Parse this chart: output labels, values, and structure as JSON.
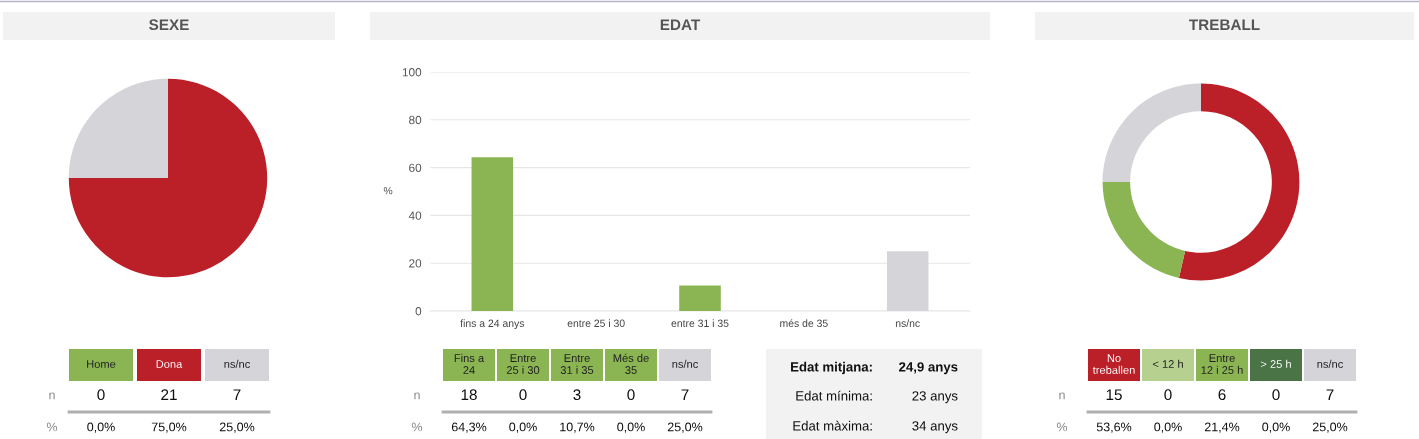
{
  "chart_data": [
    {
      "type": "pie",
      "title": "SEXE",
      "categories": [
        null,
        null,
        null
      ],
      "values": [
        0,
        75,
        25
      ],
      "colors": [
        "#8ab552",
        "#bb1f28",
        "#d4d4d9"
      ]
    },
    {
      "type": "other",
      "categories": [
        "Home",
        "Dona",
        "ns/nc"
      ],
      "colors": [
        "#8ab552",
        "#bb1f28",
        "#d4d4d9"
      ],
      "annotations": [
        "n",
        "0",
        "21",
        "7",
        "%",
        "0,0%",
        "75,0%",
        "25,0%"
      ]
    },
    {
      "type": "bar",
      "title": "EDAT",
      "ylabel": "%",
      "categories": [
        "fins a 24 anys",
        "entre 25 i 30",
        "entre 31 i 35",
        "més de 35",
        "ns/nc"
      ],
      "values": [
        64.3,
        0,
        10.7,
        0,
        25
      ],
      "colors": [
        "#8ab552",
        "#8ab552",
        "#8ab552",
        "#8ab552",
        "#d4d4d9"
      ],
      "ylim": [
        0,
        100
      ],
      "yticks": [
        0,
        20,
        40,
        60,
        80,
        100
      ],
      "grid": "y"
    },
    {
      "type": "other",
      "categories": [
        "Fins a\n24",
        "Entre\n25 i 30",
        "Entre\n31 i 35",
        "Més de\n35",
        "ns/nc"
      ],
      "colors": [
        "#8ab552",
        "#8ab552",
        "#8ab552",
        "#8ab552",
        "#d4d4d9"
      ],
      "annotations": [
        "n",
        "18",
        "0",
        "3",
        "0",
        "7",
        "%",
        "64,3%",
        "0,0%",
        "10,7%",
        "0,0%",
        "25,0%"
      ]
    },
    {
      "type": "other",
      "annotations": [
        "Edat mitjana:",
        "24,9 anys",
        "Edat mínima:",
        "23 anys",
        "Edat màxima:",
        "34 anys"
      ]
    },
    {
      "type": "donut",
      "title": "TREBALL",
      "categories": [
        null,
        null,
        null,
        null,
        null
      ],
      "values": [
        53.6,
        0,
        21.4,
        0,
        25
      ],
      "colors": [
        "#bb1f28",
        "#b5d08f",
        "#8ab552",
        "#4a7446",
        "#d4d4d9"
      ]
    },
    {
      "type": "other",
      "categories": [
        "No\ntreballen",
        "< 12 h",
        "Entre\n12 i 25 h",
        "> 25 h",
        "ns/nc"
      ],
      "colors": [
        "#bb1f28",
        "#b5d08f",
        "#8ab552",
        "#4a7446",
        "#d4d4d9"
      ],
      "annotations": [
        "n",
        "15",
        "0",
        "6",
        "0",
        "7",
        "%",
        "53,6%",
        "0,0%",
        "21,4%",
        "0,0%",
        "25,0%"
      ]
    }
  ]
}
